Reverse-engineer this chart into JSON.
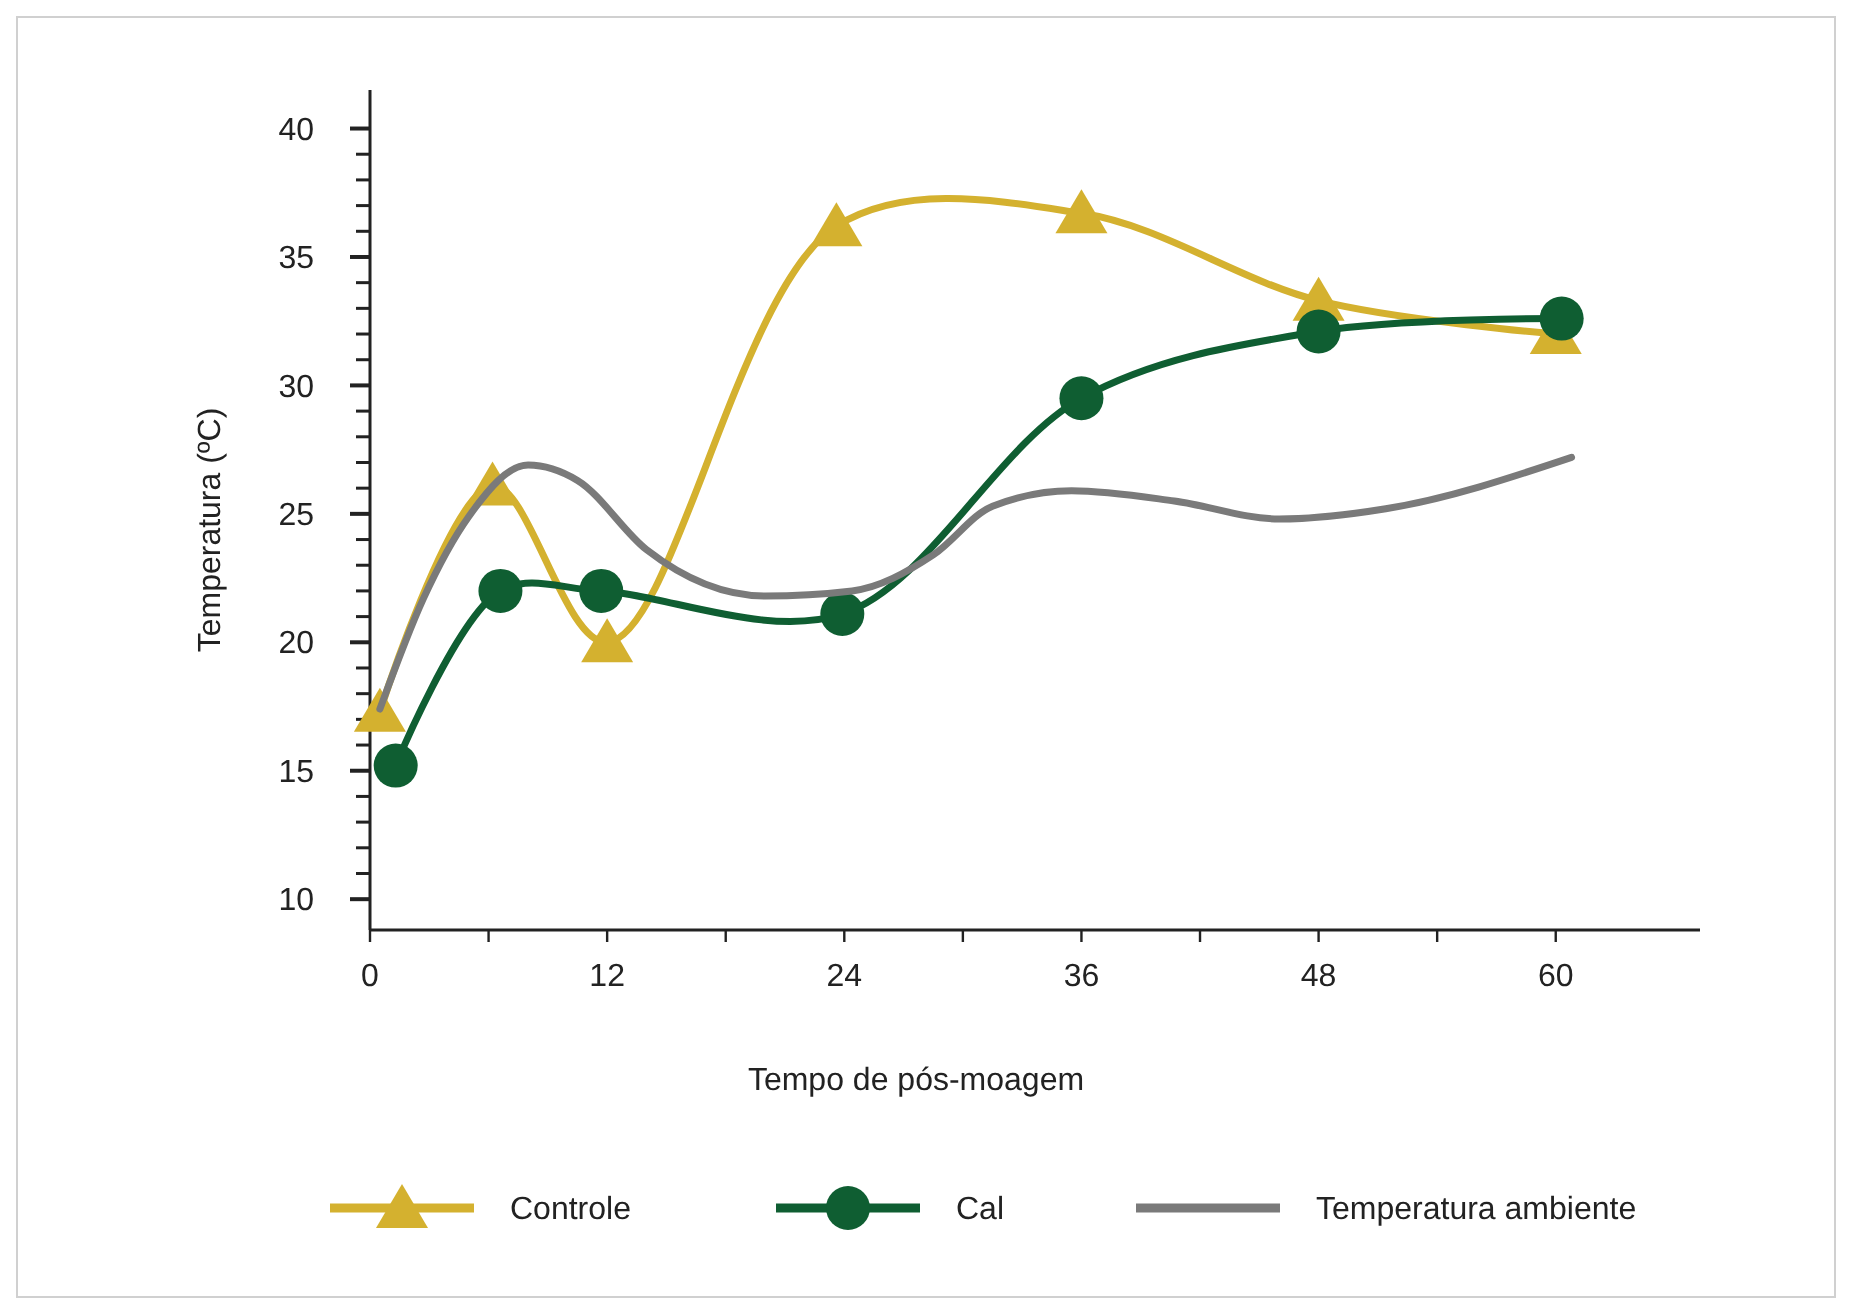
{
  "chart_data": {
    "type": "line",
    "xlabel": "Tempo de pós-moagem",
    "ylabel": "Temperatura (ºC)",
    "xlim": [
      0,
      67.3
    ],
    "xticks": [
      0,
      {
        "value": 6,
        "label": null
      },
      12,
      {
        "value": 18,
        "label": null
      },
      24,
      {
        "value": 30,
        "label": null
      },
      36,
      {
        "value": 42,
        "label": null
      },
      48,
      {
        "value": 54,
        "label": null
      },
      60
    ],
    "ylim": [
      8.8,
      41.5
    ],
    "yticks": [
      10,
      {
        "value": 11,
        "label": null
      },
      {
        "value": 12,
        "label": null
      },
      {
        "value": 13,
        "label": null
      },
      {
        "value": 14,
        "label": null
      },
      15,
      {
        "value": 16,
        "label": null
      },
      {
        "value": 17,
        "label": null
      },
      {
        "value": 18,
        "label": null
      },
      {
        "value": 19,
        "label": null
      },
      20,
      {
        "value": 21,
        "label": null
      },
      {
        "value": 22,
        "label": null
      },
      {
        "value": 23,
        "label": null
      },
      {
        "value": 24,
        "label": null
      },
      25,
      {
        "value": 26,
        "label": null
      },
      {
        "value": 27,
        "label": null
      },
      {
        "value": 28,
        "label": null
      },
      {
        "value": 29,
        "label": null
      },
      30,
      {
        "value": 31,
        "label": null
      },
      {
        "value": 32,
        "label": null
      },
      {
        "value": 33,
        "label": null
      },
      {
        "value": 34,
        "label": null
      },
      35,
      {
        "value": 36,
        "label": null
      },
      {
        "value": 37,
        "label": null
      },
      {
        "value": 38,
        "label": null
      },
      {
        "value": 39,
        "label": null
      },
      40
    ],
    "legend": "bottom",
    "grid": false,
    "series": [
      {
        "name": "Controle",
        "color": "#d4b12f",
        "marker": "triangle",
        "x": [
          0.5,
          6.2,
          12,
          23.6,
          36,
          48,
          60
        ],
        "values": [
          17.3,
          26.1,
          20.0,
          36.2,
          36.7,
          33.3,
          32.0
        ]
      },
      {
        "name": "Cal",
        "color": "#0f5e32",
        "marker": "circle",
        "x": [
          1.3,
          6.6,
          11.7,
          23.9,
          36,
          48,
          60.3
        ],
        "values": [
          15.2,
          22.0,
          22.0,
          21.1,
          29.5,
          32.1,
          32.6
        ]
      },
      {
        "name": "Temperatura ambiente",
        "color": "#7a7a7a",
        "marker": "none",
        "x": [
          0.5,
          2.7,
          5,
          8,
          10.5,
          14,
          20,
          24.4,
          28.5,
          31.5,
          35.5,
          40.7,
          46,
          51.4,
          60.8
        ],
        "values": [
          17.4,
          21.7,
          24.9,
          26.9,
          26.3,
          23.6,
          21.8,
          22,
          23.4,
          25.3,
          25.9,
          25.5,
          24.8,
          25.2,
          27.2
        ]
      }
    ]
  }
}
